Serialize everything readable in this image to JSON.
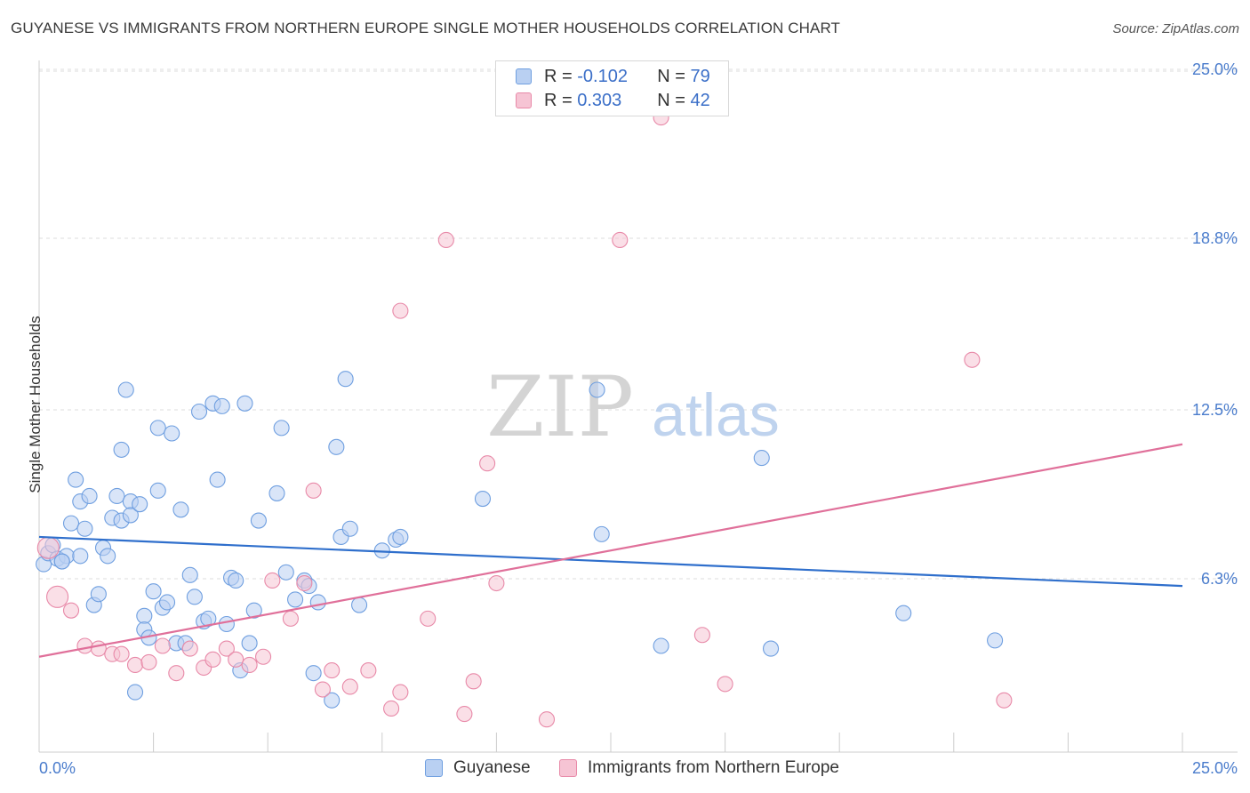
{
  "header": {
    "title": "GUYANESE VS IMMIGRANTS FROM NORTHERN EUROPE SINGLE MOTHER HOUSEHOLDS CORRELATION CHART",
    "source": "Source: ZipAtlas.com"
  },
  "legend": {
    "row1": {
      "r_label": "R =",
      "r_value": "-0.102",
      "n_label": "N =",
      "n_value": "79"
    },
    "row2": {
      "r_label": "R =",
      "r_value": "0.303",
      "n_label": "N =",
      "n_value": "42"
    }
  },
  "chart_data": {
    "type": "scatter",
    "title": "GUYANESE VS IMMIGRANTS FROM NORTHERN EUROPE SINGLE MOTHER HOUSEHOLDS CORRELATION CHART",
    "xlabel": "",
    "ylabel": "Single Mother Households",
    "xlim": [
      0,
      25
    ],
    "ylim": [
      0,
      25
    ],
    "x_tick_labels": [
      "0.0%",
      "25.0%"
    ],
    "y_tick_labels": [
      "6.3%",
      "12.5%",
      "18.8%",
      "25.0%"
    ],
    "y_ticks": [
      6.3,
      12.5,
      18.8,
      25.0
    ],
    "watermark": {
      "zip": "ZIP",
      "atlas": "atlas"
    },
    "colors": {
      "blue": "#6f9fe0",
      "blue_fill": "#b9d0f2",
      "pink": "#e889a8",
      "pink_fill": "#f6c4d4",
      "blue_line": "#2f6fcc",
      "pink_line": "#e0709a"
    },
    "series": [
      {
        "name": "Guyanese",
        "r": -0.102,
        "n": 79,
        "trend": [
          [
            0,
            7.9
          ],
          [
            25,
            6.1
          ]
        ],
        "points": [
          [
            0.1,
            6.9
          ],
          [
            0.2,
            7.3
          ],
          [
            0.3,
            7.6
          ],
          [
            0.4,
            7.1
          ],
          [
            0.6,
            7.2
          ],
          [
            0.5,
            7.0
          ],
          [
            0.7,
            8.4
          ],
          [
            0.8,
            10.0
          ],
          [
            0.9,
            9.2
          ],
          [
            1.0,
            8.2
          ],
          [
            1.1,
            9.4
          ],
          [
            1.2,
            5.4
          ],
          [
            1.3,
            5.8
          ],
          [
            1.4,
            7.5
          ],
          [
            1.5,
            7.2
          ],
          [
            1.6,
            8.6
          ],
          [
            1.7,
            9.4
          ],
          [
            1.8,
            11.1
          ],
          [
            1.9,
            13.3
          ],
          [
            1.8,
            8.5
          ],
          [
            2.0,
            9.2
          ],
          [
            2.0,
            8.7
          ],
          [
            2.1,
            2.2
          ],
          [
            2.2,
            9.1
          ],
          [
            2.3,
            5.0
          ],
          [
            2.3,
            4.5
          ],
          [
            2.4,
            4.2
          ],
          [
            2.5,
            5.9
          ],
          [
            2.6,
            9.6
          ],
          [
            2.6,
            11.9
          ],
          [
            2.7,
            5.3
          ],
          [
            2.8,
            5.5
          ],
          [
            2.9,
            11.7
          ],
          [
            3.0,
            4.0
          ],
          [
            3.1,
            8.9
          ],
          [
            3.2,
            4.0
          ],
          [
            3.3,
            6.5
          ],
          [
            3.4,
            5.7
          ],
          [
            3.5,
            12.5
          ],
          [
            3.6,
            4.8
          ],
          [
            3.7,
            4.9
          ],
          [
            3.8,
            12.8
          ],
          [
            3.9,
            10.0
          ],
          [
            4.0,
            12.7
          ],
          [
            4.1,
            4.7
          ],
          [
            4.2,
            6.4
          ],
          [
            4.3,
            6.3
          ],
          [
            4.4,
            3.0
          ],
          [
            4.5,
            12.8
          ],
          [
            4.6,
            4.0
          ],
          [
            4.7,
            5.2
          ],
          [
            4.8,
            8.5
          ],
          [
            5.2,
            9.5
          ],
          [
            5.3,
            11.9
          ],
          [
            5.4,
            6.6
          ],
          [
            5.6,
            5.6
          ],
          [
            5.8,
            6.3
          ],
          [
            5.9,
            6.1
          ],
          [
            6.0,
            2.9
          ],
          [
            6.1,
            5.5
          ],
          [
            6.4,
            1.9
          ],
          [
            6.5,
            11.2
          ],
          [
            6.6,
            7.9
          ],
          [
            6.7,
            13.7
          ],
          [
            6.8,
            8.2
          ],
          [
            7.0,
            5.4
          ],
          [
            7.5,
            7.4
          ],
          [
            7.8,
            7.8
          ],
          [
            7.9,
            7.9
          ],
          [
            9.7,
            9.3
          ],
          [
            12.2,
            13.3
          ],
          [
            12.3,
            8.0
          ],
          [
            13.6,
            3.9
          ],
          [
            15.8,
            10.8
          ],
          [
            16.0,
            3.8
          ],
          [
            18.9,
            5.1
          ],
          [
            20.9,
            4.1
          ],
          [
            0.5,
            7.0
          ],
          [
            0.9,
            7.2
          ]
        ]
      },
      {
        "name": "Immigrants from Northern Europe",
        "r": 0.303,
        "n": 42,
        "trend": [
          [
            0,
            3.5
          ],
          [
            25,
            11.3
          ]
        ],
        "points": [
          [
            0.2,
            7.5
          ],
          [
            0.4,
            5.7
          ],
          [
            0.7,
            5.2
          ],
          [
            1.0,
            3.9
          ],
          [
            1.3,
            3.8
          ],
          [
            1.6,
            3.6
          ],
          [
            1.8,
            3.6
          ],
          [
            2.1,
            3.2
          ],
          [
            2.4,
            3.3
          ],
          [
            2.7,
            3.9
          ],
          [
            3.0,
            2.9
          ],
          [
            3.3,
            3.8
          ],
          [
            3.6,
            3.1
          ],
          [
            3.8,
            3.4
          ],
          [
            4.1,
            3.8
          ],
          [
            4.3,
            3.4
          ],
          [
            4.6,
            3.2
          ],
          [
            4.9,
            3.5
          ],
          [
            5.1,
            6.3
          ],
          [
            5.5,
            4.9
          ],
          [
            5.8,
            6.2
          ],
          [
            6.0,
            9.6
          ],
          [
            6.2,
            2.3
          ],
          [
            6.4,
            3.0
          ],
          [
            6.8,
            2.4
          ],
          [
            7.2,
            3.0
          ],
          [
            7.7,
            1.6
          ],
          [
            7.9,
            2.2
          ],
          [
            7.9,
            16.2
          ],
          [
            8.5,
            4.9
          ],
          [
            8.9,
            18.8
          ],
          [
            9.3,
            1.4
          ],
          [
            9.5,
            2.6
          ],
          [
            9.8,
            10.6
          ],
          [
            10.0,
            6.2
          ],
          [
            11.1,
            1.2
          ],
          [
            12.7,
            18.8
          ],
          [
            13.6,
            23.3
          ],
          [
            14.5,
            4.3
          ],
          [
            15.0,
            2.5
          ],
          [
            20.4,
            14.4
          ],
          [
            21.1,
            1.9
          ]
        ]
      }
    ]
  }
}
